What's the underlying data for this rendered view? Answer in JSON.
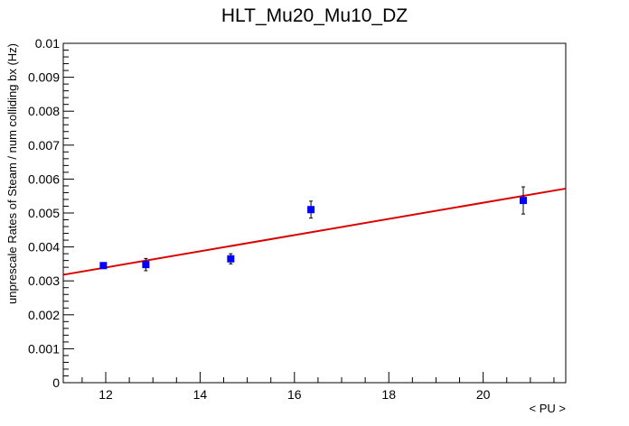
{
  "chart_data": {
    "type": "scatter",
    "title": "HLT_Mu20_Mu10_DZ",
    "xlabel": "< PU >",
    "ylabel": "unprescale Rates of Steam / num colliding bx (Hz)",
    "xlim": [
      11.1,
      21.75
    ],
    "ylim": [
      0,
      0.01
    ],
    "x_ticks": [
      12,
      14,
      16,
      18,
      20
    ],
    "x_tick_labels": [
      "12",
      "14",
      "16",
      "18",
      "20"
    ],
    "y_ticks": [
      0,
      0.001,
      0.002,
      0.003,
      0.004,
      0.005,
      0.006,
      0.007,
      0.008,
      0.009,
      0.01
    ],
    "y_tick_labels": [
      "0",
      "0.001",
      "0.002",
      "0.003",
      "0.004",
      "0.005",
      "0.006",
      "0.007",
      "0.008",
      "0.009",
      "0.01"
    ],
    "grid": false,
    "series": [
      {
        "x": [
          11.95,
          12.85,
          14.65,
          16.35,
          20.85
        ],
        "y": [
          0.00345,
          0.00348,
          0.00365,
          0.0051,
          0.00537
        ],
        "yerr": [
          5e-05,
          0.00018,
          0.00015,
          0.00025,
          0.0004
        ],
        "color": "#0000ff",
        "marker": "square"
      }
    ],
    "fit": {
      "x": [
        11.1,
        21.75
      ],
      "y": [
        0.00318,
        0.00572
      ],
      "color": "#dd0000"
    }
  }
}
